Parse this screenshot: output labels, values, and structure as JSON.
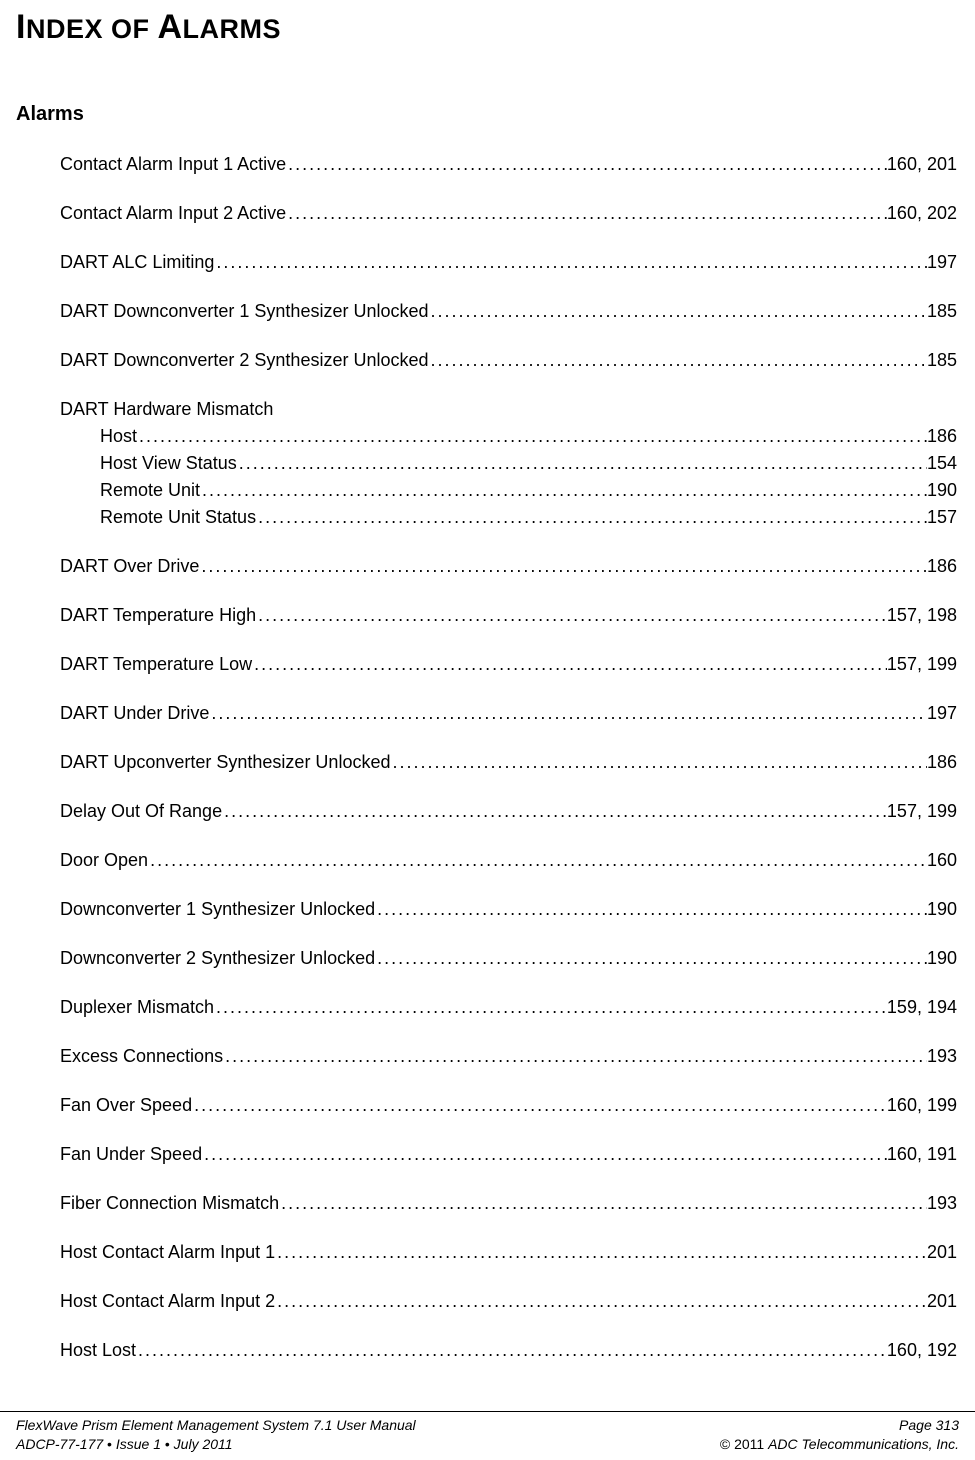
{
  "title_parts": {
    "i": "I",
    "ndex_of": "NDEX OF ",
    "a": "A",
    "larms": "LARMS"
  },
  "section": "Alarms",
  "entries_top": [
    {
      "label": "Contact Alarm Input 1 Active",
      "page": "160, 201"
    },
    {
      "label": "Contact Alarm Input 2 Active",
      "page": "160, 202"
    },
    {
      "label": "DART ALC Limiting",
      "page": "197"
    },
    {
      "label": "DART Downconverter 1 Synthesizer Unlocked",
      "page": "185"
    },
    {
      "label": "DART Downconverter 2 Synthesizer Unlocked",
      "page": "185"
    }
  ],
  "group": {
    "head": "DART Hardware Mismatch",
    "items": [
      {
        "label": "Host",
        "page": "186"
      },
      {
        "label": "Host View Status",
        "page": "154"
      },
      {
        "label": "Remote Unit",
        "page": "190"
      },
      {
        "label": "Remote Unit Status",
        "page": "157"
      }
    ]
  },
  "entries_bottom": [
    {
      "label": "DART Over Drive",
      "page": "186"
    },
    {
      "label": "DART Temperature High",
      "page": "157, 198"
    },
    {
      "label": "DART Temperature Low",
      "page": "157, 199"
    },
    {
      "label": "DART Under Drive",
      "page": "197"
    },
    {
      "label": "DART Upconverter Synthesizer Unlocked",
      "page": "186"
    },
    {
      "label": "Delay Out Of Range",
      "page": "157, 199"
    },
    {
      "label": "Door Open",
      "page": "160"
    },
    {
      "label": "Downconverter 1 Synthesizer Unlocked",
      "page": "190"
    },
    {
      "label": "Downconverter 2 Synthesizer Unlocked",
      "page": "190"
    },
    {
      "label": "Duplexer Mismatch",
      "page": "159, 194"
    },
    {
      "label": "Excess Connections",
      "page": "193"
    },
    {
      "label": "Fan Over Speed",
      "page": "160, 199"
    },
    {
      "label": "Fan Under Speed",
      "page": "160, 191"
    },
    {
      "label": "Fiber Connection Mismatch",
      "page": "193"
    },
    {
      "label": "Host Contact Alarm Input 1",
      "page": "201"
    },
    {
      "label": "Host Contact Alarm Input 2",
      "page": "201"
    },
    {
      "label": "Host Lost",
      "page": "160, 192"
    }
  ],
  "footer": {
    "left1": "FlexWave Prism Element Management System 7.1 User Manual",
    "left2_a": "ADCP-77-177",
    "left2_b": "Issue 1",
    "left2_c": "July 2011",
    "bullet": "  •  ",
    "right1": "Page 313",
    "right2_pre": "© 2011 ",
    "right2_co": "ADC Telecommunications, Inc."
  },
  "colors": {
    "text": "#000000",
    "bg": "#ffffff"
  }
}
